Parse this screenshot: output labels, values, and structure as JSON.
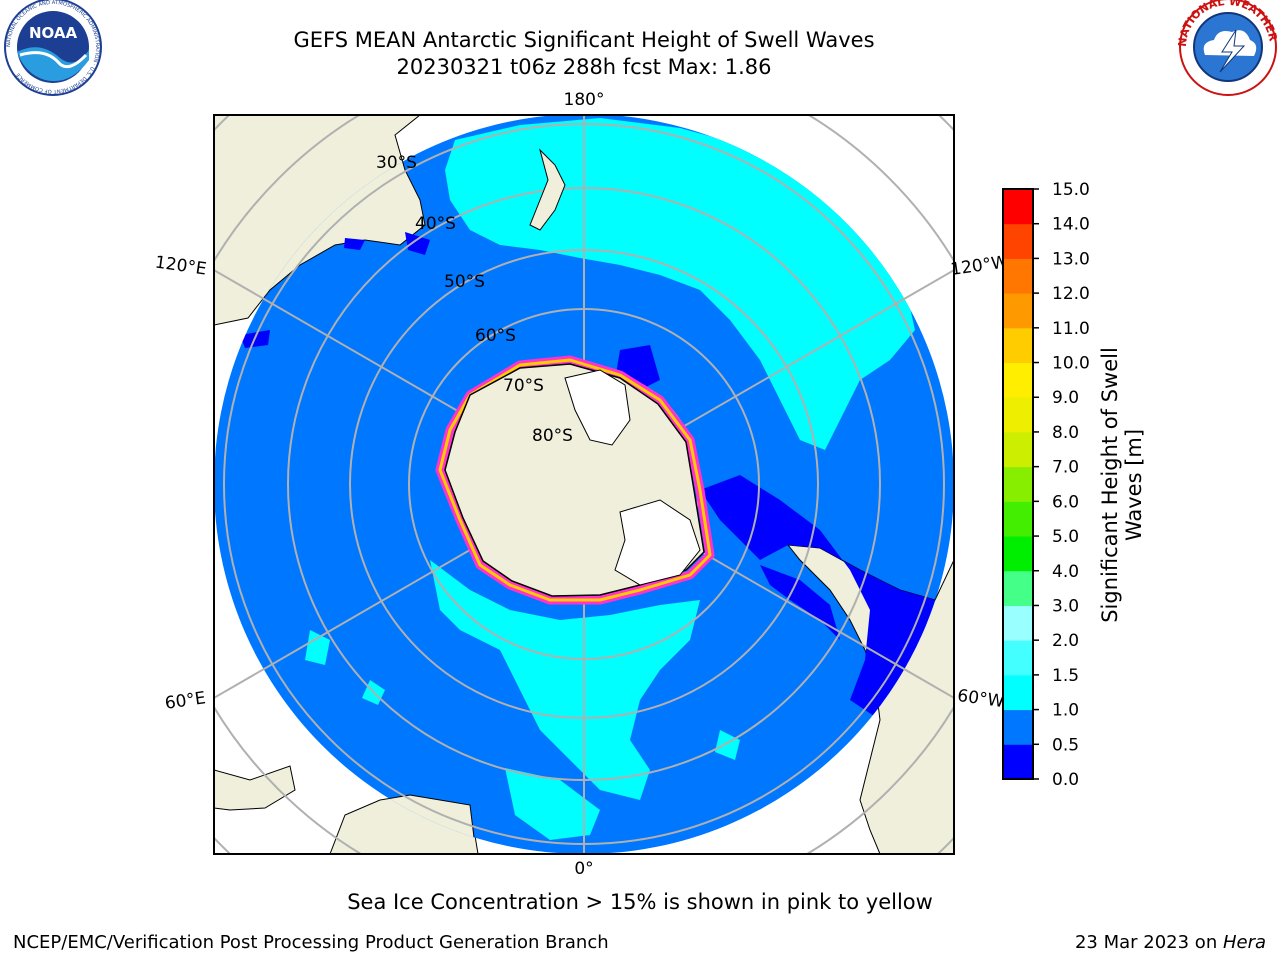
{
  "header": {
    "title_line1": "GEFS MEAN Antarctic Significant Height of Swell Waves",
    "title_line2": "20230321 t06z 288h fcst   Max: 1.86"
  },
  "logos": {
    "left": {
      "name": "NOAA",
      "ring_text": "NATIONAL OCEANIC AND ATMOSPHERIC ADMINISTRATION · U.S. DEPARTMENT OF COMMERCE"
    },
    "right": {
      "ring_text": "NATIONAL WEATHER SERVICE"
    }
  },
  "map": {
    "projection": "south-polar-stereographic",
    "longitude_labels": {
      "top": "180°",
      "bottom": "0°",
      "upper_left": "120°E",
      "upper_right": "120°W",
      "lower_left": "60°E",
      "lower_right": "60°W"
    },
    "latitude_labels": [
      "30°S",
      "40°S",
      "50°S",
      "60°S",
      "70°S",
      "80°S"
    ],
    "colors": {
      "land": "#efefdc",
      "ice_shelf": "#ffffff",
      "grid": "#b0b0b0"
    }
  },
  "colorbar": {
    "label_line1": "Significant Height of Swell",
    "label_line2": "Waves [m]",
    "ticks": [
      "0.0",
      "0.5",
      "1.0",
      "1.5",
      "2.0",
      "3.0",
      "4.0",
      "5.0",
      "6.0",
      "7.0",
      "8.0",
      "9.0",
      "10.0",
      "11.0",
      "12.0",
      "13.0",
      "14.0",
      "15.0"
    ],
    "colors": [
      "#0000ff",
      "#0077ff",
      "#00ffff",
      "#44ffff",
      "#99ffff",
      "#44ff88",
      "#00ee00",
      "#44ee00",
      "#88ee00",
      "#ccee00",
      "#eeee00",
      "#ffee00",
      "#ffcc00",
      "#ff9900",
      "#ff7700",
      "#ff4400",
      "#ff0000"
    ]
  },
  "footnote": "Sea Ice Concentration > 15% is shown in pink to yellow",
  "credit": {
    "left": "NCEP/EMC/Verification Post Processing Product Generation Branch",
    "right_date": "23 Mar 2023 on ",
    "right_host": "Hera"
  }
}
